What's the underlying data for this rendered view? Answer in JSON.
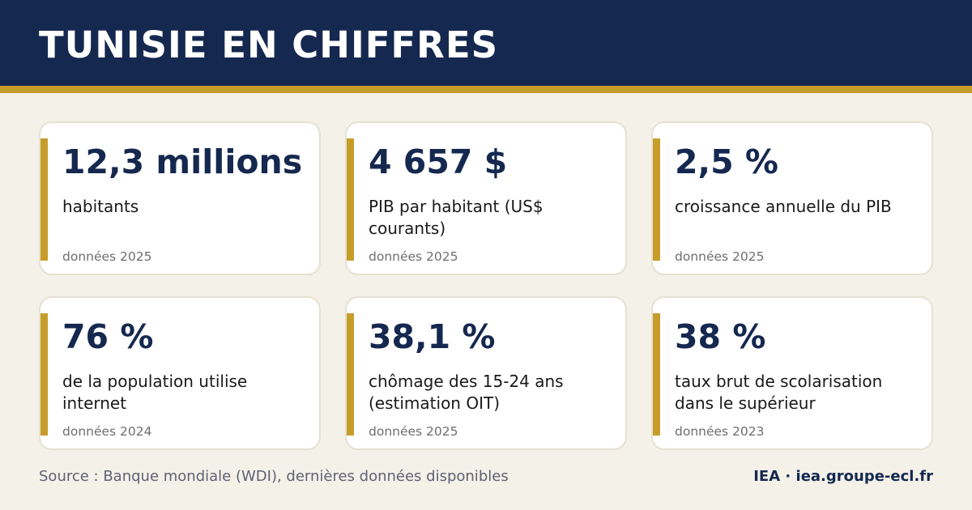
{
  "header": {
    "title": "TUNISIE EN CHIFFRES"
  },
  "cards": [
    {
      "value": "12,3 millions",
      "label": "habitants",
      "year": "données 2025"
    },
    {
      "value": "4 657 $",
      "label": "PIB par habitant (US$ courants)",
      "year": "données 2025"
    },
    {
      "value": "2,5 %",
      "label": "croissance annuelle du PIB",
      "year": "données 2025"
    },
    {
      "value": "76 %",
      "label": "de la population utilise internet",
      "year": "données 2024"
    },
    {
      "value": "38,1 %",
      "label": "chômage des 15-24 ans (estimation OIT)",
      "year": "données 2025"
    },
    {
      "value": "38 %",
      "label": "taux brut de scolarisation dans le supérieur",
      "year": "données 2023"
    }
  ],
  "footer": {
    "source": "Source : Banque mondiale (WDI), dernières données disponibles",
    "brand": "IEA · iea.groupe-ecl.fr"
  },
  "colors": {
    "navy": "#15284f",
    "gold": "#c79d2a",
    "background": "#f4f1e9",
    "card": "#ffffff"
  }
}
